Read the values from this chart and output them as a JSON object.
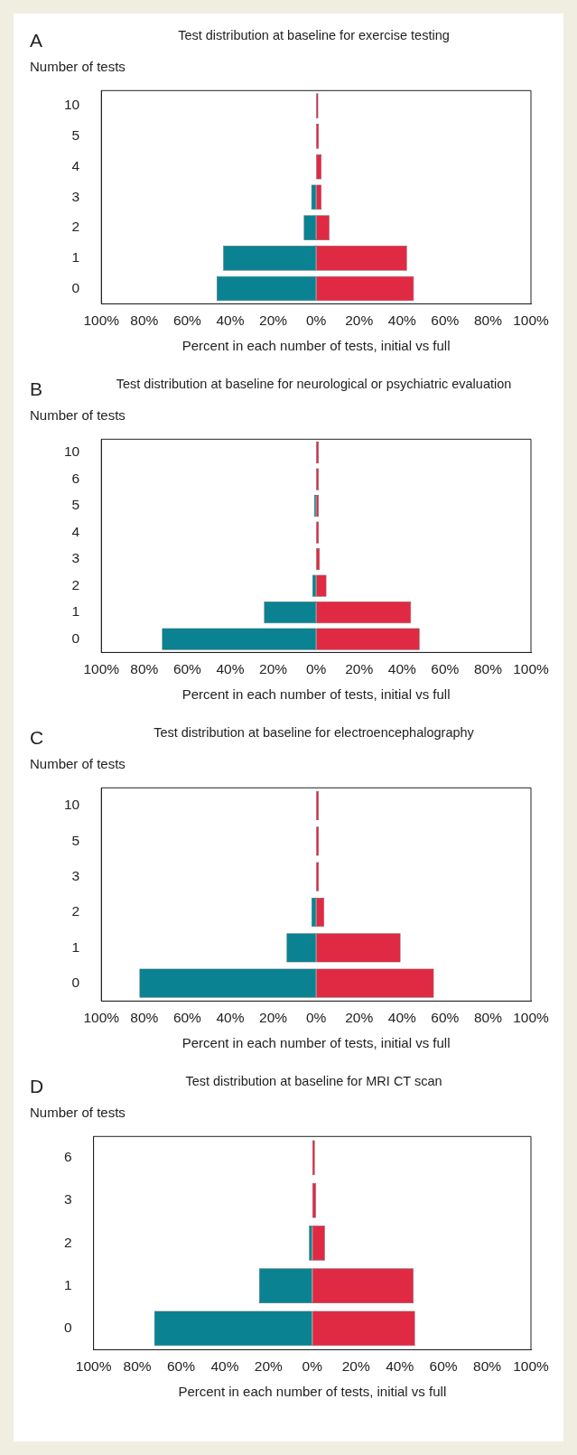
{
  "chart_data": [
    {
      "type": "bar",
      "orientation": "horizontal",
      "stacked": true,
      "title": "Test distribution at baseline for exercise testing",
      "annotations": [
        "A"
      ],
      "xlabel": "Percent in each number of tests, initial vs full",
      "ylabel": "Number of tests",
      "categories": [
        "10",
        "5",
        "4",
        "3",
        "2",
        "1",
        "0"
      ],
      "xlim": [
        -100,
        100
      ],
      "xticks": [
        {
          "value": -100,
          "label": "100%"
        },
        {
          "value": -80,
          "label": "80%"
        },
        {
          "value": -60,
          "label": "60%"
        },
        {
          "value": -40,
          "label": "40%"
        },
        {
          "value": -20,
          "label": "20%"
        },
        {
          "value": 0,
          "label": "0%"
        },
        {
          "value": 20,
          "label": "20%"
        },
        {
          "value": 40,
          "label": "40%"
        },
        {
          "value": 60,
          "label": "60%"
        },
        {
          "value": 80,
          "label": "80%"
        },
        {
          "value": 100,
          "label": "100%"
        }
      ],
      "series": [
        {
          "color": "#0b8291",
          "values": [
            0,
            0,
            0,
            -2.3,
            -5.8,
            -43.3,
            -46.3
          ]
        },
        {
          "color": "#e02a44",
          "values": [
            1.0,
            1.3,
            2.5,
            2.5,
            6.2,
            42.3,
            45.5
          ]
        }
      ]
    },
    {
      "type": "bar",
      "orientation": "horizontal",
      "stacked": true,
      "title": "Test distribution at baseline for neurological or psychiatric evaluation",
      "annotations": [
        "B"
      ],
      "xlabel": "Percent in each number of tests, initial vs full",
      "ylabel": "Number of tests",
      "categories": [
        "10",
        "6",
        "5",
        "4",
        "3",
        "2",
        "1",
        "0"
      ],
      "xlim": [
        -100,
        100
      ],
      "xticks": [
        {
          "value": -100,
          "label": "100%"
        },
        {
          "value": -80,
          "label": "80%"
        },
        {
          "value": -60,
          "label": "60%"
        },
        {
          "value": -40,
          "label": "40%"
        },
        {
          "value": -20,
          "label": "20%"
        },
        {
          "value": 0,
          "label": "0%"
        },
        {
          "value": 20,
          "label": "20%"
        },
        {
          "value": 40,
          "label": "40%"
        },
        {
          "value": 60,
          "label": "60%"
        },
        {
          "value": 80,
          "label": "80%"
        },
        {
          "value": 100,
          "label": "100%"
        }
      ],
      "series": [
        {
          "color": "#0b8291",
          "values": [
            0,
            0,
            -1.0,
            0,
            0,
            -1.8,
            -24.3,
            -71.8
          ]
        },
        {
          "color": "#e02a44",
          "values": [
            1.2,
            1.2,
            1.2,
            1.3,
            1.7,
            4.8,
            44.2,
            48.2
          ]
        }
      ]
    },
    {
      "type": "bar",
      "orientation": "horizontal",
      "stacked": true,
      "title": "Test distribution at baseline for electroencephalography",
      "annotations": [
        "C"
      ],
      "xlabel": "Percent in each number of tests, initial vs full",
      "ylabel": "Number of tests",
      "categories": [
        "10",
        "5",
        "3",
        "2",
        "1",
        "0"
      ],
      "xlim": [
        -100,
        100
      ],
      "xticks": [
        {
          "value": -100,
          "label": "100%"
        },
        {
          "value": -80,
          "label": "80%"
        },
        {
          "value": -60,
          "label": "60%"
        },
        {
          "value": -40,
          "label": "40%"
        },
        {
          "value": -20,
          "label": "20%"
        },
        {
          "value": 0,
          "label": "0%"
        },
        {
          "value": 20,
          "label": "20%"
        },
        {
          "value": 40,
          "label": "40%"
        },
        {
          "value": 60,
          "label": "60%"
        },
        {
          "value": 80,
          "label": "80%"
        },
        {
          "value": 100,
          "label": "100%"
        }
      ],
      "series": [
        {
          "color": "#0b8291",
          "values": [
            0,
            0,
            0,
            -2.2,
            -13.8,
            -82.3
          ]
        },
        {
          "color": "#e02a44",
          "values": [
            1.2,
            1.3,
            1.3,
            3.8,
            39.3,
            54.8
          ]
        }
      ]
    },
    {
      "type": "bar",
      "orientation": "horizontal",
      "stacked": true,
      "title": "Test distribution at baseline for MRI CT scan",
      "annotations": [
        "D"
      ],
      "xlabel": "Percent in each number of tests, initial vs full",
      "ylabel": "Number of tests",
      "categories": [
        "6",
        "3",
        "2",
        "1",
        "0"
      ],
      "xlim": [
        -100,
        100
      ],
      "xticks": [
        {
          "value": -100,
          "label": "100%"
        },
        {
          "value": -80,
          "label": "80%"
        },
        {
          "value": -60,
          "label": "60%"
        },
        {
          "value": -40,
          "label": "40%"
        },
        {
          "value": -20,
          "label": "20%"
        },
        {
          "value": 0,
          "label": "0%"
        },
        {
          "value": 20,
          "label": "20%"
        },
        {
          "value": 40,
          "label": "40%"
        },
        {
          "value": 60,
          "label": "60%"
        },
        {
          "value": 80,
          "label": "80%"
        },
        {
          "value": 100,
          "label": "100%"
        }
      ],
      "series": [
        {
          "color": "#0b8291",
          "values": [
            0,
            0,
            -1.5,
            -24.3,
            -72.3
          ]
        },
        {
          "color": "#e02a44",
          "values": [
            1.2,
            1.7,
            5.8,
            46.3,
            47.0
          ]
        }
      ]
    }
  ]
}
